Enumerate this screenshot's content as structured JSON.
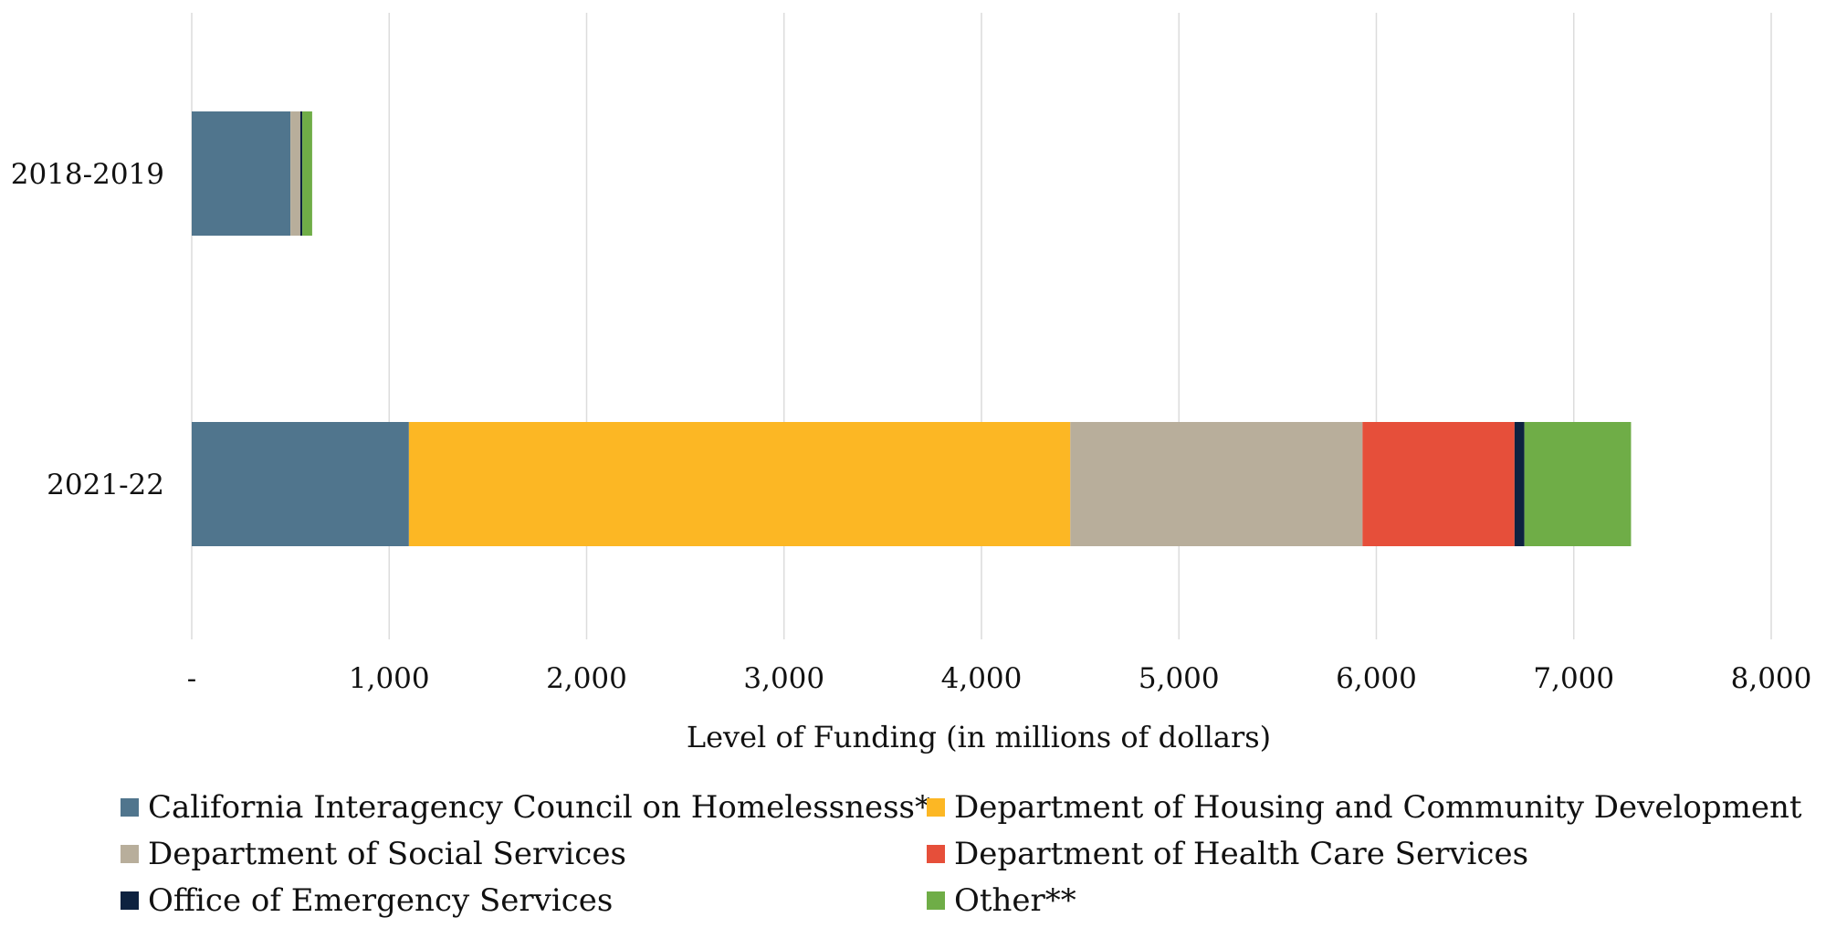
{
  "chart_data": {
    "type": "bar",
    "orientation": "horizontal",
    "stacked": true,
    "title": "",
    "xlabel": "Level of Funding (in millions of dollars)",
    "ylabel": "",
    "xlim": [
      0,
      8000
    ],
    "x_ticks": [
      0,
      1000,
      2000,
      3000,
      4000,
      5000,
      6000,
      7000,
      8000
    ],
    "x_tick_labels": [
      "-",
      "1,000",
      "2,000",
      "3,000",
      "4,000",
      "5,000",
      "6,000",
      "7,000",
      "8,000"
    ],
    "grid": "vertical",
    "legend_position": "bottom",
    "categories": [
      "2018-2019",
      "2021-22"
    ],
    "series": [
      {
        "name": "California Interagency Council on Homelessness*",
        "color": "#50758D",
        "values": [
          500,
          1100
        ]
      },
      {
        "name": "Department of Housing and Community Development",
        "color": "#FCB724",
        "values": [
          0,
          3350
        ]
      },
      {
        "name": "Department of Social Services",
        "color": "#B8AE9B",
        "values": [
          50,
          1480
        ]
      },
      {
        "name": "Department of Health Care Services",
        "color": "#E64F3A",
        "values": [
          0,
          770
        ]
      },
      {
        "name": "Office of Emergency Services",
        "color": "#0D2240",
        "values": [
          10,
          50
        ]
      },
      {
        "name": "Other**",
        "color": "#6FAD47",
        "values": [
          50,
          540
        ]
      }
    ]
  }
}
